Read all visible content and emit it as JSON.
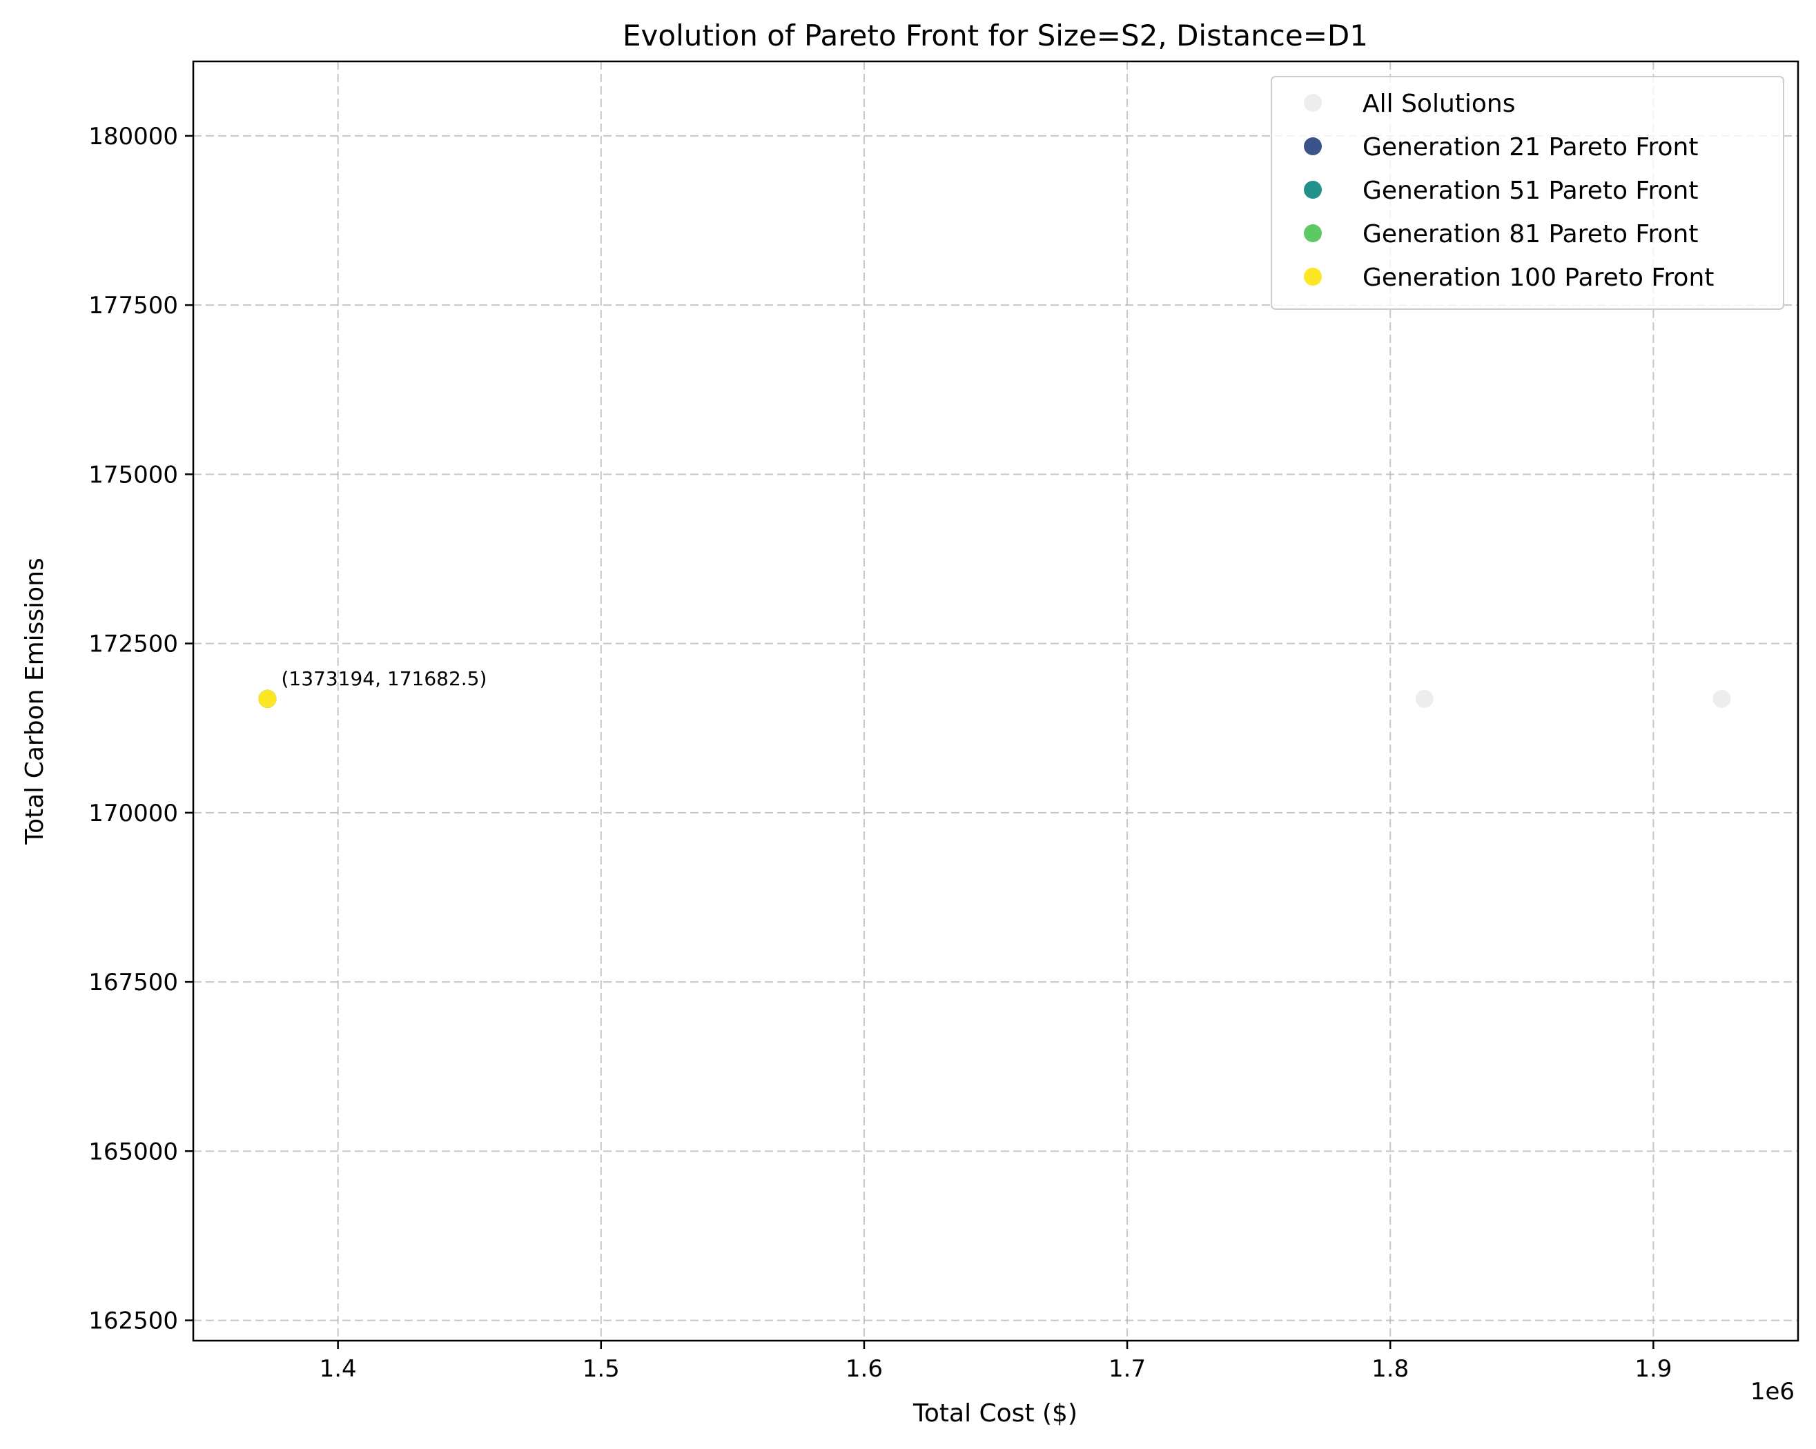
{
  "chart_data": {
    "type": "scatter",
    "title": "Evolution of Pareto Front for Size=S2, Distance=D1",
    "xlabel": "Total Cost ($)",
    "ylabel": "Total Carbon Emissions",
    "x_offset_label": "1e6",
    "x_scale": 1000000,
    "xlim": [
      1345000,
      1955000
    ],
    "ylim": [
      162200,
      181100
    ],
    "x_ticks": [
      1400000,
      1500000,
      1600000,
      1700000,
      1800000,
      1900000
    ],
    "x_tick_labels": [
      "1.4",
      "1.5",
      "1.6",
      "1.7",
      "1.8",
      "1.9"
    ],
    "y_ticks": [
      162500,
      165000,
      167500,
      170000,
      172500,
      175000,
      177500,
      180000
    ],
    "y_tick_labels": [
      "162500",
      "165000",
      "167500",
      "170000",
      "172500",
      "175000",
      "177500",
      "180000"
    ],
    "grid": true,
    "legend_position": "top-right",
    "series": [
      {
        "name": "All Solutions",
        "color": "#d3d3d3",
        "alpha": 0.4,
        "points": [
          [
            1373194,
            171682.5
          ],
          [
            1813000,
            171682.5
          ],
          [
            1926000,
            171682.5
          ]
        ]
      },
      {
        "name": "Generation 21 Pareto Front",
        "color": "#3b528b",
        "alpha": 1,
        "points": [
          [
            1373194,
            171682.5
          ]
        ]
      },
      {
        "name": "Generation 51 Pareto Front",
        "color": "#21918c",
        "alpha": 1,
        "points": [
          [
            1373194,
            171682.5
          ]
        ]
      },
      {
        "name": "Generation 81 Pareto Front",
        "color": "#5ec962",
        "alpha": 1,
        "points": [
          [
            1373194,
            171682.5
          ]
        ]
      },
      {
        "name": "Generation 100 Pareto Front",
        "color": "#fde725",
        "alpha": 1,
        "points": [
          [
            1373194,
            171682.5
          ]
        ]
      }
    ],
    "annotations": [
      {
        "text": "(1373194, 171682.5)",
        "x": 1373194,
        "y": 171682.5
      }
    ]
  }
}
